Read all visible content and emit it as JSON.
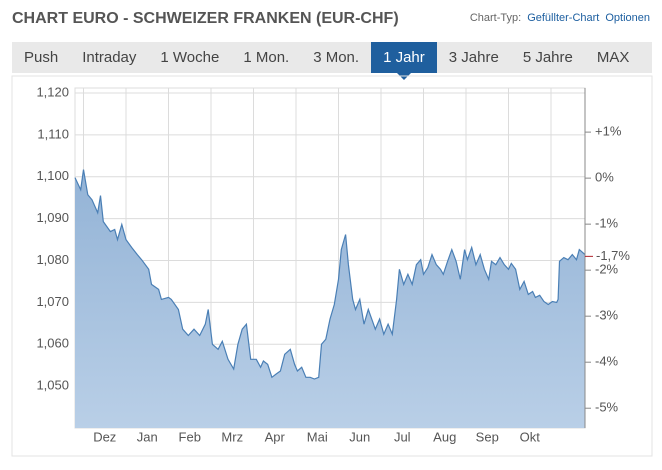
{
  "header": {
    "title": "CHART EURO - SCHWEIZER FRANKEN (EUR-CHF)",
    "chart_type_label": "Chart-Typ:",
    "chart_type_value": "Gefüllter-Chart",
    "options": "Optionen"
  },
  "tabs": {
    "items": [
      "Push",
      "Intraday",
      "1 Woche",
      "1 Mon.",
      "3 Mon.",
      "1 Jahr",
      "3 Jahre",
      "5 Jahre",
      "MAX"
    ],
    "active": 5
  },
  "chart_data": {
    "type": "area",
    "x": [
      0,
      4,
      6,
      9,
      12,
      16,
      18,
      20,
      25,
      28,
      30,
      33,
      36,
      40,
      44,
      47,
      52,
      54,
      59,
      61,
      66,
      68,
      73,
      76,
      80,
      84,
      88,
      92,
      94,
      97,
      101,
      104,
      108,
      112,
      115,
      118,
      121,
      124,
      128,
      131,
      133,
      136,
      139,
      142,
      145,
      148,
      152,
      155,
      157,
      160,
      163,
      166,
      169,
      172,
      174,
      177,
      180,
      183,
      186,
      188,
      191,
      193,
      196,
      198,
      201,
      204,
      207,
      210,
      212,
      215,
      218,
      221,
      224,
      227,
      229,
      232,
      235,
      238,
      241,
      244,
      246,
      249,
      252,
      255,
      258,
      260,
      263,
      266,
      269,
      272,
      275,
      277,
      280,
      283,
      286,
      289,
      292,
      294,
      297,
      300,
      303,
      306,
      308,
      311,
      314,
      317,
      320,
      323,
      325,
      328,
      331,
      334,
      337,
      340,
      341,
      342,
      345,
      348,
      351,
      354,
      356,
      360
    ],
    "series": [
      {
        "color": "#4a7fb5",
        "fill": "#a9c4e0",
        "values": [
          1.0998,
          1.0969,
          1.1017,
          1.0957,
          1.0945,
          1.0914,
          1.0955,
          1.0893,
          1.0869,
          1.0874,
          1.085,
          1.0886,
          1.085,
          1.0831,
          1.0814,
          1.0802,
          1.0779,
          1.0743,
          1.0731,
          1.0707,
          1.0712,
          1.0707,
          1.0683,
          1.0636,
          1.0621,
          1.0636,
          1.0621,
          1.0648,
          1.0683,
          1.06,
          1.0588,
          1.0607,
          1.0564,
          1.0541,
          1.06,
          1.0636,
          1.0648,
          1.0564,
          1.0564,
          1.0545,
          1.056,
          1.0552,
          1.0521,
          1.0529,
          1.0536,
          1.0576,
          1.0588,
          1.0552,
          1.0536,
          1.0545,
          1.0521,
          1.0521,
          1.0517,
          1.0521,
          1.06,
          1.0612,
          1.066,
          1.0695,
          1.0755,
          1.0826,
          1.0862,
          1.079,
          1.0707,
          1.0683,
          1.0707,
          1.0648,
          1.0683,
          1.0655,
          1.0636,
          1.066,
          1.0624,
          1.0648,
          1.0624,
          1.0707,
          1.0779,
          1.0743,
          1.0767,
          1.0743,
          1.079,
          1.0802,
          1.0767,
          1.0783,
          1.0814,
          1.079,
          1.0779,
          1.0767,
          1.0798,
          1.0826,
          1.0798,
          1.0755,
          1.0826,
          1.0802,
          1.0831,
          1.079,
          1.0814,
          1.0779,
          1.0755,
          1.0798,
          1.079,
          1.0807,
          1.079,
          1.0779,
          1.0793,
          1.0779,
          1.0731,
          1.075,
          1.0719,
          1.0726,
          1.0712,
          1.0717,
          1.0702,
          1.0695,
          1.0702,
          1.07,
          1.0707,
          1.0798,
          1.0807,
          1.0802,
          1.0814,
          1.0802,
          1.0826,
          1.0814
        ]
      }
    ],
    "xlim": [
      0,
      360
    ],
    "xticks": [
      {
        "value": 21,
        "label": "Dez"
      },
      {
        "value": 51,
        "label": "Jan"
      },
      {
        "value": 81,
        "label": "Feb"
      },
      {
        "value": 111,
        "label": "Mrz"
      },
      {
        "value": 141,
        "label": "Apr"
      },
      {
        "value": 171,
        "label": "Mai"
      },
      {
        "value": 201,
        "label": "Jun"
      },
      {
        "value": 231,
        "label": "Jul"
      },
      {
        "value": 261,
        "label": "Aug"
      },
      {
        "value": 291,
        "label": "Sep"
      },
      {
        "value": 321,
        "label": "Okt"
      }
    ],
    "xgrid": [
      6,
      36,
      66,
      96,
      126,
      156,
      186,
      216,
      246,
      276,
      306,
      336
    ],
    "ylim": [
      1.04,
      1.12
    ],
    "yticks": [
      {
        "value": 1.12,
        "label": "1,120"
      },
      {
        "value": 1.11,
        "label": "1,110"
      },
      {
        "value": 1.1,
        "label": "1,100"
      },
      {
        "value": 1.09,
        "label": "1,090"
      },
      {
        "value": 1.08,
        "label": "1,080"
      },
      {
        "value": 1.07,
        "label": "1,070"
      },
      {
        "value": 1.06,
        "label": "1,060"
      },
      {
        "value": 1.05,
        "label": "1,050"
      }
    ],
    "y2lim": [
      -5.43,
      1.85
    ],
    "y2ticks": [
      {
        "value": 1,
        "label": "+1%"
      },
      {
        "value": 0,
        "label": "0%"
      },
      {
        "value": -1,
        "label": "-1%"
      },
      {
        "value": -2,
        "label": "-2%"
      },
      {
        "value": -3,
        "label": "-3%"
      },
      {
        "value": -4,
        "label": "-4%"
      },
      {
        "value": -5,
        "label": "-5%"
      }
    ],
    "annotation": {
      "value": -1.7,
      "label": "-1,7%",
      "color": "#b0202a"
    },
    "grid": true
  }
}
